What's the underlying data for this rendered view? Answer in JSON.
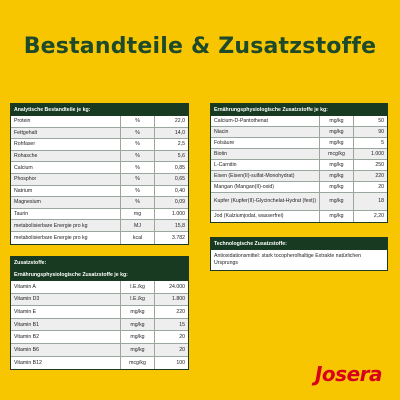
{
  "title": "Bestandteile & Zusatzstoffe",
  "brand": "Josera",
  "colors": {
    "background": "#f7c600",
    "header": "#173a20",
    "title": "#1e4a2a",
    "logo": "#d8001b"
  },
  "analytic": {
    "heading": "Analytische Bestandteile je kg:",
    "rows": [
      [
        "Protein",
        "%",
        "22,0"
      ],
      [
        "Fettgehalt",
        "%",
        "14,0"
      ],
      [
        "Rohfaser",
        "%",
        "2,5"
      ],
      [
        "Rohasche",
        "%",
        "5,6"
      ],
      [
        "Calcium",
        "%",
        "0,85"
      ],
      [
        "Phosphor",
        "%",
        "0,65"
      ],
      [
        "Natrium",
        "%",
        "0,40"
      ],
      [
        "Magnesium",
        "%",
        "0,09"
      ],
      [
        "Taurin",
        "mg",
        "1.000"
      ],
      [
        "metabolisierbare Energie pro kg",
        "MJ",
        "15,8"
      ],
      [
        "metabolisierbare Energie pro kg",
        "kcal",
        "3.782"
      ]
    ]
  },
  "additives": {
    "heading": "Zusatzstoffe:",
    "subheading": "Ernährungsphysiologische Zusatzstoffe je kg:",
    "rows": [
      [
        "Vitamin A",
        "I.E./kg",
        "24.000"
      ],
      [
        "Vitamin D3",
        "I.E./kg",
        "1.800"
      ],
      [
        "Vitamin E",
        "mg/kg",
        "220"
      ],
      [
        "Vitamin B1",
        "mg/kg",
        "15"
      ],
      [
        "Vitamin B2",
        "mg/kg",
        "20"
      ],
      [
        "Vitamin B6",
        "mg/kg",
        "20"
      ],
      [
        "Vitamin B12",
        "mcg/kg",
        "100"
      ]
    ]
  },
  "nutritional": {
    "heading": "Ernährungsphysiologische Zusatzstoffe je kg:",
    "rows": [
      [
        "Calcium-D-Pantothenat",
        "mg/kg",
        "50"
      ],
      [
        "Niacin",
        "mg/kg",
        "90"
      ],
      [
        "Folsäure",
        "mg/kg",
        "5"
      ],
      [
        "Biotin",
        "mcg/kg",
        "1.000"
      ],
      [
        "L-Carnitin",
        "mg/kg",
        "250"
      ],
      [
        "Eisen (Eisen(II)-sulfat-Monohydrat)",
        "mg/kg",
        "220"
      ],
      [
        "Mangan (Mangan(II)-oxid)",
        "mg/kg",
        "20"
      ],
      [
        "Kupfer (Kupfer(II)-Glycinchelat-Hydrat (fest))",
        "mg/kg",
        "18"
      ],
      [
        "Jod (Kalziumjodat, wasserfrei)",
        "mg/kg",
        "2,20"
      ]
    ]
  },
  "technological": {
    "heading": "Technologische Zusatzstoffe:",
    "text": "Antioxidationsmittel: stark tocopherolhaltige Extrakte natürlichen Ursprungs"
  }
}
